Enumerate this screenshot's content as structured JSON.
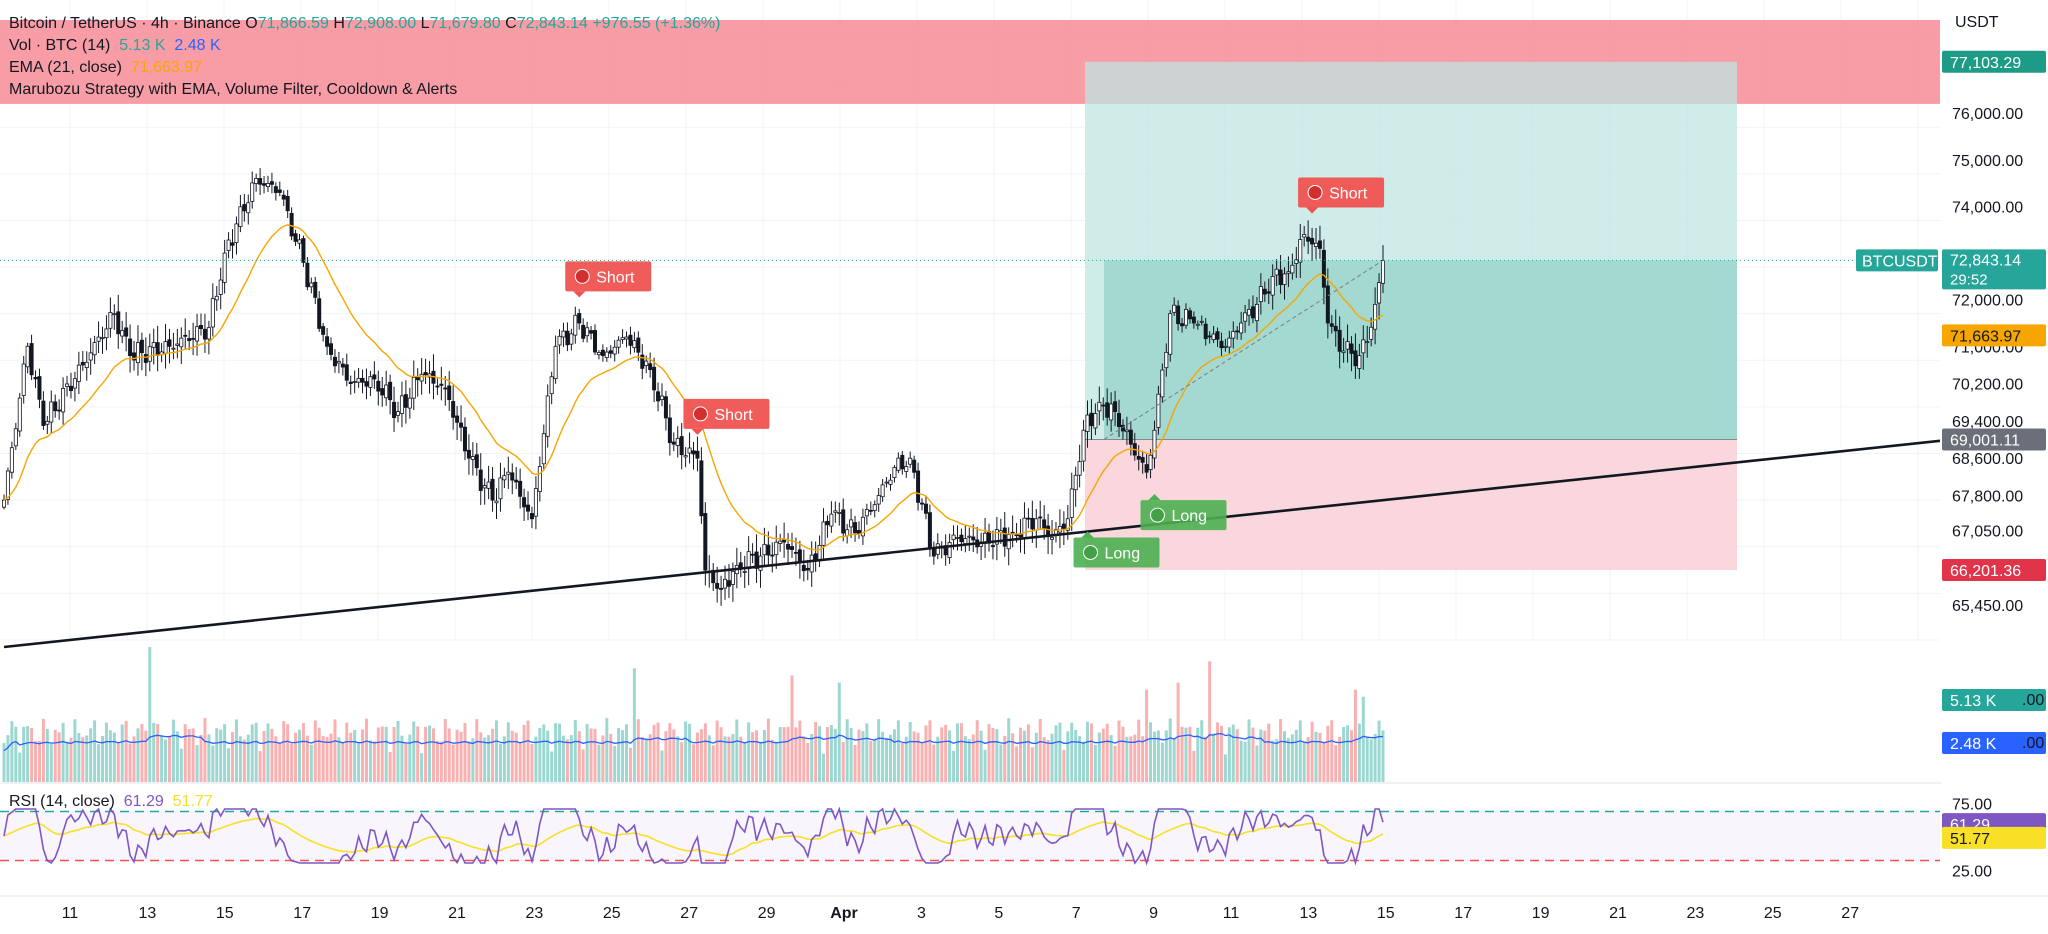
{
  "legend": {
    "symbol": "Bitcoin / TetherUS · 4h · Binance",
    "open_label": "O",
    "open": "71,866.59",
    "high_label": "H",
    "high": "72,908.00",
    "low_label": "L",
    "low": "71,679.80",
    "close_label": "C",
    "close": "72,843.14",
    "change": "+976.55 (+1.36%)",
    "vol_label": "Vol · BTC (14)",
    "vol_value": "5.13 K",
    "vol_ma": "2.48 K",
    "ema_label": "EMA (21, close)",
    "ema_value": "71,663.97",
    "strategy_label": "Marubozu Strategy with EMA, Volume Filter, Cooldown & Alerts"
  },
  "rsi_legend": {
    "label": "RSI (14, close)",
    "rsi_value": "61.29",
    "ma_value": "51.77"
  },
  "currency": "USDT",
  "colors": {
    "up": "#26a69a",
    "down": "#ef5350",
    "ema": "#f7a600",
    "vol_ma": "#2962ff",
    "rsi": "#7e57c2",
    "rsi_ma": "#f7e025",
    "short_label": "#ef5350",
    "long_label": "#4caf50",
    "resistance_zone": "#f78c96",
    "target_zone": "#bfe6e0",
    "stop_zone": "#f9cdd3"
  },
  "chart_data": {
    "type": "candlestick",
    "title": "Bitcoin / TetherUS · 4h · Binance",
    "ylim": [
      64700,
      78000
    ],
    "y_ticks": [
      "77,103.29",
      "76,000.00",
      "75,000.00",
      "74,000.00",
      "72,000.00",
      "71,000.00",
      "70,200.00",
      "69,400.00",
      "68,600.00",
      "67,800.00",
      "67,050.00",
      "65,450.00"
    ],
    "x_ticks": [
      "11",
      "13",
      "15",
      "17",
      "19",
      "21",
      "23",
      "25",
      "27",
      "29",
      "Apr",
      "3",
      "5",
      "7",
      "9",
      "11",
      "13",
      "15",
      "17",
      "19",
      "21",
      "23",
      "25",
      "27"
    ],
    "last_price": 72843.14,
    "last_price_tag": "BTCUSDT",
    "last_price_label": "72,843.14",
    "countdown": "29:52",
    "ema_last": 71663.97,
    "ema_last_label": "71,663.97",
    "volume_labels": {
      "vol": "5.13 K",
      "vol_ma": "2.48 K",
      "axis_tail": ".00"
    },
    "anchors": [
      {
        "i": 0,
        "c": 67700
      },
      {
        "i": 6,
        "c": 71000
      },
      {
        "i": 10,
        "c": 69300
      },
      {
        "i": 20,
        "c": 70600
      },
      {
        "i": 28,
        "c": 71700
      },
      {
        "i": 32,
        "c": 70800
      },
      {
        "i": 42,
        "c": 71000
      },
      {
        "i": 52,
        "c": 71400
      },
      {
        "i": 56,
        "c": 73000
      },
      {
        "i": 64,
        "c": 74600
      },
      {
        "i": 70,
        "c": 74300
      },
      {
        "i": 76,
        "c": 72800
      },
      {
        "i": 82,
        "c": 71000
      },
      {
        "i": 88,
        "c": 70200
      },
      {
        "i": 94,
        "c": 70300
      },
      {
        "i": 100,
        "c": 69600
      },
      {
        "i": 106,
        "c": 70400
      },
      {
        "i": 112,
        "c": 70100
      },
      {
        "i": 118,
        "c": 68600
      },
      {
        "i": 124,
        "c": 67700
      },
      {
        "i": 128,
        "c": 68300
      },
      {
        "i": 134,
        "c": 67300
      },
      {
        "i": 140,
        "c": 71000
      },
      {
        "i": 146,
        "c": 71500
      },
      {
        "i": 152,
        "c": 70800
      },
      {
        "i": 158,
        "c": 71200
      },
      {
        "i": 164,
        "c": 70500
      },
      {
        "i": 170,
        "c": 68900
      },
      {
        "i": 176,
        "c": 68600
      },
      {
        "i": 178,
        "c": 66200
      },
      {
        "i": 182,
        "c": 65800
      },
      {
        "i": 186,
        "c": 66300
      },
      {
        "i": 192,
        "c": 66500
      },
      {
        "i": 198,
        "c": 66800
      },
      {
        "i": 204,
        "c": 66200
      },
      {
        "i": 210,
        "c": 67400
      },
      {
        "i": 216,
        "c": 67000
      },
      {
        "i": 222,
        "c": 67800
      },
      {
        "i": 226,
        "c": 68400
      },
      {
        "i": 230,
        "c": 68600
      },
      {
        "i": 236,
        "c": 66500
      },
      {
        "i": 242,
        "c": 66900
      },
      {
        "i": 248,
        "c": 66800
      },
      {
        "i": 256,
        "c": 67000
      },
      {
        "i": 262,
        "c": 67300
      },
      {
        "i": 266,
        "c": 66900
      },
      {
        "i": 270,
        "c": 67300
      },
      {
        "i": 274,
        "c": 69200
      },
      {
        "i": 278,
        "c": 69800
      },
      {
        "i": 282,
        "c": 69600
      },
      {
        "i": 286,
        "c": 68900
      },
      {
        "i": 290,
        "c": 68300
      },
      {
        "i": 292,
        "c": 69200
      },
      {
        "i": 296,
        "c": 71700
      },
      {
        "i": 302,
        "c": 71500
      },
      {
        "i": 306,
        "c": 71200
      },
      {
        "i": 310,
        "c": 71000
      },
      {
        "i": 314,
        "c": 71500
      },
      {
        "i": 318,
        "c": 71900
      },
      {
        "i": 322,
        "c": 72500
      },
      {
        "i": 326,
        "c": 72600
      },
      {
        "i": 330,
        "c": 73400
      },
      {
        "i": 334,
        "c": 73100
      },
      {
        "i": 336,
        "c": 71500
      },
      {
        "i": 340,
        "c": 70900
      },
      {
        "i": 344,
        "c": 70800
      },
      {
        "i": 346,
        "c": 71100
      },
      {
        "i": 348,
        "c": 71900
      },
      {
        "i": 350,
        "c": 72843
      }
    ],
    "markers": [
      {
        "type": "Short",
        "label": "Short",
        "i": 146,
        "price": 72050
      },
      {
        "type": "Short",
        "label": "Short",
        "i": 176,
        "price": 69100
      },
      {
        "type": "Long",
        "label": "Long",
        "i": 275,
        "price": 66900
      },
      {
        "type": "Long",
        "label": "Long",
        "i": 292,
        "price": 67700
      },
      {
        "type": "Short",
        "label": "Short",
        "i": 332,
        "price": 73850
      }
    ],
    "zones": {
      "resistance": {
        "top": 78000,
        "bottom": 76200
      },
      "position": {
        "entry": 69001.11,
        "entry_label": "69,001.11",
        "target": 77103.29,
        "target_label": "77,103.29",
        "stop": 66201.36,
        "stop_label": "66,201.36"
      }
    },
    "trendline": {
      "from": {
        "i": 0,
        "price": 64550
      },
      "to": {
        "i": 500,
        "price": 69050
      }
    },
    "rsi": {
      "ylim": [
        10,
        90
      ],
      "upper": 70,
      "lower": 30,
      "upper_label": "75.00",
      "lower_label": "25.00",
      "last": 61.29,
      "last_label": "61.29",
      "ma_last": 51.77,
      "ma_last_label": "51.77"
    }
  }
}
